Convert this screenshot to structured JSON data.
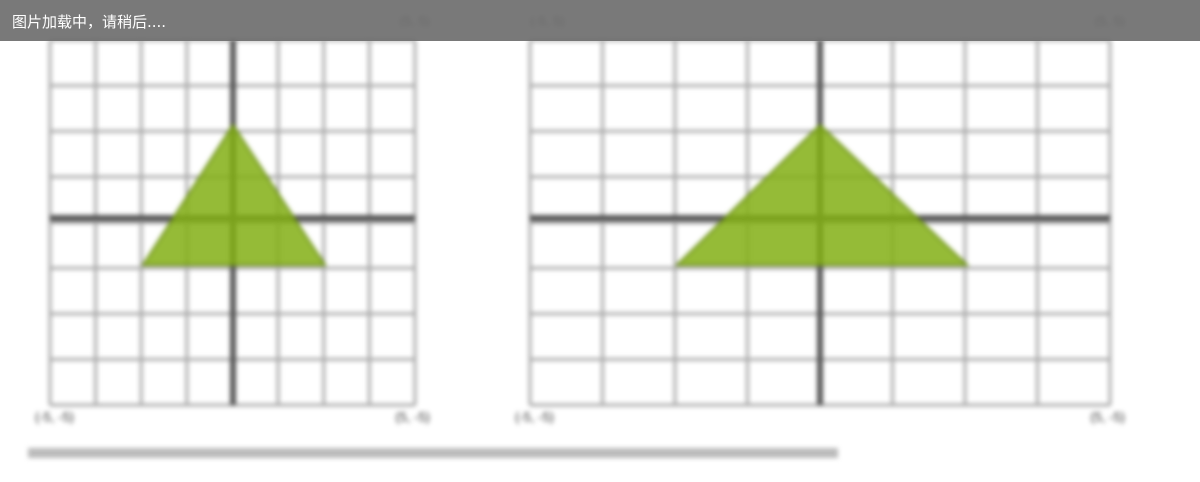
{
  "loading_bar": {
    "text": "图片加载中，请稍后...."
  },
  "figures": [
    {
      "corner_labels": {
        "top_right": "(5, 5)",
        "bottom_left": "(-5, -5)",
        "bottom_right": "(5, -5)"
      }
    },
    {
      "corner_labels": {
        "top_left": "(-5, 5)",
        "top_right": "(5, 5)",
        "bottom_left": "(-5, -5)",
        "bottom_right": "(5, -5)"
      }
    }
  ]
}
